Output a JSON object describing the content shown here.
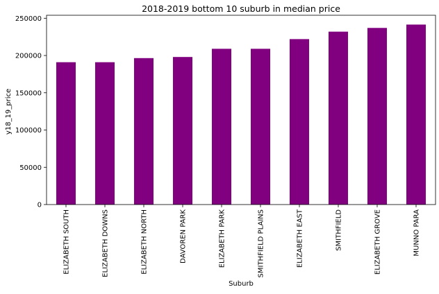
{
  "chart_data": {
    "type": "bar",
    "title": "2018-2019 bottom 10 suburb in median price",
    "xlabel": "Suburb",
    "ylabel": "y18_19_price",
    "categories": [
      "ELIZABETH SOUTH",
      "ELIZABETH DOWNS",
      "ELIZABETH NORTH",
      "DAVOREN PARK",
      "ELIZABETH PARK",
      "SMITHFIELD PLAINS",
      "ELIZABETH EAST",
      "SMITHFIELD",
      "ELIZABETH GROVE",
      "MUNNO PARA"
    ],
    "values": [
      191000,
      191000,
      196500,
      198000,
      209000,
      209000,
      222000,
      232000,
      237000,
      241500
    ],
    "ylim": [
      0,
      254000
    ],
    "yticks": [
      0,
      50000,
      100000,
      150000,
      200000,
      250000
    ],
    "ytick_labels": [
      "0",
      "50000",
      "100000",
      "150000",
      "200000",
      "250000"
    ],
    "bar_color": "#800080",
    "grid": false,
    "legend": "none"
  }
}
